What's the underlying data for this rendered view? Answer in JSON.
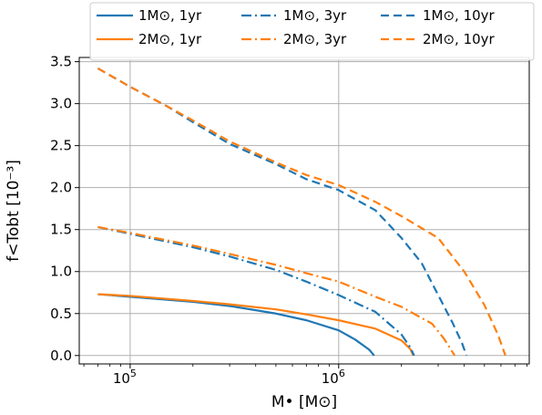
{
  "chart_data": {
    "type": "line",
    "xscale": "log",
    "xlabel": "M• [M⊙]",
    "ylabel": "f<Tobt [10⁻³]",
    "xlim": [
      57000,
      8200000
    ],
    "ylim": [
      -0.1,
      3.55
    ],
    "x_major_ticks": [
      {
        "value": 100000,
        "label_base": "10",
        "label_exp": "5"
      },
      {
        "value": 1000000,
        "label_base": "10",
        "label_exp": "6"
      }
    ],
    "y_ticks": [
      {
        "value": 0.0,
        "label": "0.0"
      },
      {
        "value": 0.5,
        "label": "0.5"
      },
      {
        "value": 1.0,
        "label": "1.0"
      },
      {
        "value": 1.5,
        "label": "1.5"
      },
      {
        "value": 2.0,
        "label": "2.0"
      },
      {
        "value": 2.5,
        "label": "2.5"
      },
      {
        "value": 3.0,
        "label": "3.0"
      },
      {
        "value": 3.5,
        "label": "3.5"
      }
    ],
    "grid": true,
    "legend_position": "top, outside, 3 columns",
    "colors": {
      "blue": "#1f77b4",
      "orange": "#ff7f0e"
    },
    "series": [
      {
        "name": "1M⊙, 1yr",
        "color": "#1f77b4",
        "dash": "solid",
        "points": [
          [
            70000,
            0.73
          ],
          [
            100000,
            0.7
          ],
          [
            200000,
            0.64
          ],
          [
            300000,
            0.59
          ],
          [
            500000,
            0.5
          ],
          [
            700000,
            0.42
          ],
          [
            1000000,
            0.3
          ],
          [
            1200000,
            0.19
          ],
          [
            1400000,
            0.07
          ],
          [
            1480000,
            0.0
          ]
        ]
      },
      {
        "name": "2M⊙, 1yr",
        "color": "#ff7f0e",
        "dash": "solid",
        "points": [
          [
            70000,
            0.73
          ],
          [
            100000,
            0.71
          ],
          [
            200000,
            0.65
          ],
          [
            300000,
            0.61
          ],
          [
            500000,
            0.55
          ],
          [
            700000,
            0.49
          ],
          [
            1000000,
            0.42
          ],
          [
            1500000,
            0.32
          ],
          [
            2000000,
            0.18
          ],
          [
            2200000,
            0.08
          ],
          [
            2280000,
            0.0
          ]
        ]
      },
      {
        "name": "1M⊙, 3yr",
        "color": "#1f77b4",
        "dash": "dashdot",
        "points": [
          [
            70000,
            1.53
          ],
          [
            100000,
            1.45
          ],
          [
            200000,
            1.29
          ],
          [
            300000,
            1.18
          ],
          [
            500000,
            1.02
          ],
          [
            700000,
            0.88
          ],
          [
            1000000,
            0.72
          ],
          [
            1500000,
            0.52
          ],
          [
            2000000,
            0.25
          ],
          [
            2200000,
            0.1
          ],
          [
            2300000,
            0.0
          ]
        ]
      },
      {
        "name": "2M⊙, 3yr",
        "color": "#ff7f0e",
        "dash": "dashdot",
        "points": [
          [
            70000,
            1.53
          ],
          [
            100000,
            1.46
          ],
          [
            200000,
            1.31
          ],
          [
            300000,
            1.21
          ],
          [
            500000,
            1.08
          ],
          [
            700000,
            0.98
          ],
          [
            1000000,
            0.88
          ],
          [
            1500000,
            0.7
          ],
          [
            2000000,
            0.58
          ],
          [
            2800000,
            0.38
          ],
          [
            3200000,
            0.2
          ],
          [
            3600000,
            0.0
          ]
        ]
      },
      {
        "name": "1M⊙, 10yr",
        "color": "#1f77b4",
        "dash": "dashed",
        "points": [
          [
            70000,
            3.42
          ],
          [
            100000,
            3.2
          ],
          [
            150000,
            2.97
          ],
          [
            200000,
            2.78
          ],
          [
            300000,
            2.52
          ],
          [
            500000,
            2.28
          ],
          [
            700000,
            2.1
          ],
          [
            1000000,
            1.97
          ],
          [
            1500000,
            1.73
          ],
          [
            2000000,
            1.4
          ],
          [
            2500000,
            1.1
          ],
          [
            3000000,
            0.72
          ],
          [
            3500000,
            0.4
          ],
          [
            3900000,
            0.15
          ],
          [
            4100000,
            0.0
          ]
        ]
      },
      {
        "name": "2M⊙, 10yr",
        "color": "#ff7f0e",
        "dash": "dashed",
        "points": [
          [
            70000,
            3.42
          ],
          [
            100000,
            3.2
          ],
          [
            150000,
            2.97
          ],
          [
            200000,
            2.8
          ],
          [
            300000,
            2.55
          ],
          [
            500000,
            2.3
          ],
          [
            700000,
            2.15
          ],
          [
            1000000,
            2.03
          ],
          [
            1500000,
            1.83
          ],
          [
            2000000,
            1.66
          ],
          [
            3000000,
            1.4
          ],
          [
            4000000,
            1.0
          ],
          [
            5000000,
            0.6
          ],
          [
            5800000,
            0.25
          ],
          [
            6300000,
            0.0
          ]
        ]
      }
    ]
  }
}
